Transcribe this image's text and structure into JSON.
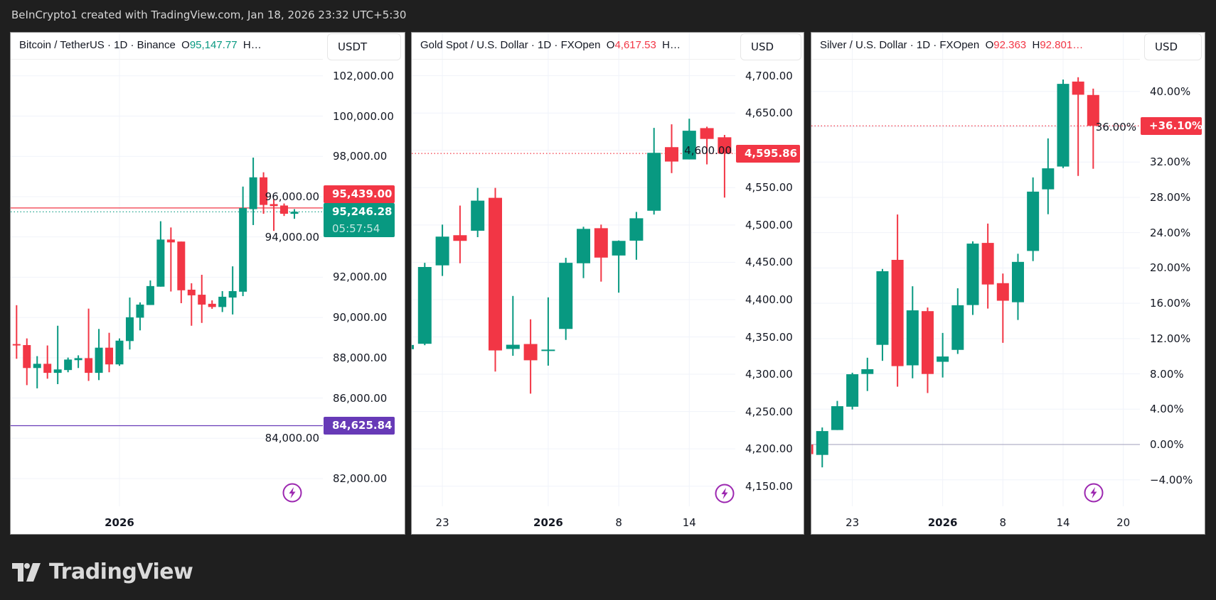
{
  "header": {
    "attribution": "BeInCrypto1 created with TradingView.com, Jan 18, 2026 23:32 UTC+5:30"
  },
  "footer": {
    "logo_text": "TradingView"
  },
  "colors": {
    "up": "#089981",
    "down": "#f23645",
    "alert_line": "#673ab7",
    "baseline": "#b2b0c8",
    "bolt_icon": "#9c27b0",
    "background": "#1f1f1f"
  },
  "chart_data": [
    {
      "type": "candlestick",
      "title": "Bitcoin / TetherUS · 1D · Binance",
      "legend": [
        {
          "text": "O",
          "color": null
        },
        {
          "text": "95,147.77",
          "color": "#089981"
        },
        {
          "text": "  H…",
          "color": null
        }
      ],
      "currency": "USDT",
      "scale": "price",
      "ylim": [
        80600,
        104100
      ],
      "grid": true,
      "y_ticks": [
        {
          "value": 102000,
          "label": "102,000.00"
        },
        {
          "value": 100000,
          "label": "100,000.00"
        },
        {
          "value": 98000,
          "label": "98,000.00"
        },
        {
          "value": 96000,
          "label": "96,000.00"
        },
        {
          "value": 94000,
          "label": "94,000.00"
        },
        {
          "value": 92000,
          "label": "92,000.00"
        },
        {
          "value": 90000,
          "label": "90,000.00"
        },
        {
          "value": 88000,
          "label": "88,000.00"
        },
        {
          "value": 86000,
          "label": "86,000.00"
        },
        {
          "value": 84000,
          "label": "84,000.00"
        },
        {
          "value": 82000,
          "label": "82,000.00"
        }
      ],
      "x_ticks": [
        {
          "date": "2026-01-01",
          "label": "2026",
          "year": true
        }
      ],
      "columns": [
        "date",
        "open",
        "high",
        "low",
        "close"
      ],
      "candles": [
        [
          "2025-12-22",
          88680,
          90610,
          87950,
          88620
        ],
        [
          "2025-12-23",
          88630,
          88960,
          86640,
          87490
        ],
        [
          "2025-12-24",
          87490,
          88080,
          86480,
          87700
        ],
        [
          "2025-12-25",
          87700,
          88610,
          86960,
          87250
        ],
        [
          "2025-12-26",
          87250,
          89590,
          86690,
          87420
        ],
        [
          "2025-12-27",
          87390,
          88010,
          87280,
          87910
        ],
        [
          "2025-12-28",
          87880,
          88120,
          87490,
          87980
        ],
        [
          "2025-12-29",
          87980,
          90440,
          86850,
          87250
        ],
        [
          "2025-12-30",
          87250,
          89430,
          86890,
          88500
        ],
        [
          "2025-12-31",
          88500,
          89240,
          87280,
          87670
        ],
        [
          "2026-01-01",
          87670,
          88960,
          87600,
          88850
        ],
        [
          "2026-01-02",
          88830,
          90990,
          88410,
          90010
        ],
        [
          "2026-01-03",
          89990,
          90750,
          89360,
          90640
        ],
        [
          "2026-01-04",
          90620,
          91840,
          90620,
          91560
        ],
        [
          "2026-01-05",
          91530,
          94780,
          91530,
          93870
        ],
        [
          "2026-01-06",
          93870,
          94470,
          91290,
          93730
        ],
        [
          "2026-01-07",
          93770,
          93770,
          90710,
          91350
        ],
        [
          "2026-01-08",
          91380,
          91700,
          89590,
          91100
        ],
        [
          "2026-01-09",
          91130,
          92120,
          89730,
          90640
        ],
        [
          "2026-01-10",
          90680,
          90850,
          90430,
          90520
        ],
        [
          "2026-01-11",
          90520,
          91310,
          90270,
          91030
        ],
        [
          "2026-01-12",
          90990,
          92540,
          90150,
          91310
        ],
        [
          "2026-01-13",
          91280,
          96500,
          91060,
          95430
        ],
        [
          "2026-01-14",
          95380,
          97940,
          94590,
          96960
        ],
        [
          "2026-01-15",
          96960,
          97210,
          95150,
          95590
        ],
        [
          "2026-01-16",
          95630,
          95870,
          94300,
          95530
        ],
        [
          "2026-01-17",
          95560,
          95660,
          95040,
          95150
        ],
        [
          "2026-01-18",
          95147.77,
          95380,
          94900,
          95246.28
        ]
      ],
      "price_lines": [
        {
          "value": 95246.28,
          "label": "95,246.28",
          "sublabel": "05:57:54",
          "color": "#089981",
          "style": "dotted"
        },
        {
          "value": 95439,
          "label": "95,439.00",
          "color": "#f23645",
          "style": "solid"
        },
        {
          "value": 84625.84,
          "label": "84,625.84",
          "color": "#673ab7",
          "style": "solid"
        }
      ]
    },
    {
      "type": "candlestick",
      "title": "Gold Spot / U.S. Dollar · 1D · FXOpen",
      "legend": [
        {
          "text": "O",
          "color": null
        },
        {
          "text": "4,617.53",
          "color": "#f23645"
        },
        {
          "text": "  H…",
          "color": null
        }
      ],
      "currency": "USD",
      "scale": "price",
      "ylim": [
        4123,
        4758
      ],
      "grid": true,
      "y_ticks": [
        {
          "value": 4700,
          "label": "4,700.00"
        },
        {
          "value": 4650,
          "label": "4,650.00"
        },
        {
          "value": 4600,
          "label": "4,600.00"
        },
        {
          "value": 4550,
          "label": "4,550.00"
        },
        {
          "value": 4500,
          "label": "4,500.00"
        },
        {
          "value": 4450,
          "label": "4,450.00"
        },
        {
          "value": 4400,
          "label": "4,400.00"
        },
        {
          "value": 4350,
          "label": "4,350.00"
        },
        {
          "value": 4300,
          "label": "4,300.00"
        },
        {
          "value": 4250,
          "label": "4,250.00"
        },
        {
          "value": 4200,
          "label": "4,200.00"
        },
        {
          "value": 4150,
          "label": "4,150.00"
        }
      ],
      "x_ticks": [
        {
          "date": "2025-12-23",
          "label": "23"
        },
        {
          "date": "2026-01-02",
          "label": "2026",
          "year": true
        },
        {
          "date": "2026-01-08",
          "label": "8"
        },
        {
          "date": "2026-01-14",
          "label": "14"
        }
      ],
      "columns": [
        "date",
        "open",
        "high",
        "low",
        "close"
      ],
      "candles": [
        [
          "2025-12-19",
          4333.6,
          4341.0,
          4332.0,
          4339.2
        ],
        [
          "2025-12-22",
          4340.8,
          4449.3,
          4338.9,
          4443.7
        ],
        [
          "2025-12-23",
          4445.9,
          4500.5,
          4431.7,
          4484.4
        ],
        [
          "2025-12-24",
          4486.3,
          4526.0,
          4448.7,
          4478.7
        ],
        [
          "2025-12-26",
          4492.3,
          4549.7,
          4483.7,
          4532.6
        ],
        [
          "2025-12-29",
          4536.4,
          4549.7,
          4303.6,
          4331.9
        ],
        [
          "2025-12-30",
          4333.9,
          4404.9,
          4324.7,
          4339.5
        ],
        [
          "2025-12-31",
          4340.5,
          4373.6,
          4274.0,
          4318.7
        ],
        [
          "2026-01-02",
          4332.0,
          4403.0,
          4311.5,
          4333.0
        ],
        [
          "2026-01-05",
          4360.7,
          4456.0,
          4346.0,
          4449.3
        ],
        [
          "2026-01-06",
          4448.7,
          4497.6,
          4428.8,
          4494.8
        ],
        [
          "2026-01-07",
          4495.7,
          4500.5,
          4424.1,
          4456.3
        ],
        [
          "2026-01-08",
          4459.1,
          4479.3,
          4409.3,
          4478.7
        ],
        [
          "2026-01-09",
          4479.0,
          4517.5,
          4453.4,
          4509.0
        ],
        [
          "2026-01-12",
          4519.1,
          4630.1,
          4514.0,
          4596.7
        ],
        [
          "2026-01-13",
          4604.3,
          4634.9,
          4569.5,
          4585.0
        ],
        [
          "2026-01-14",
          4587.8,
          4642.4,
          4587.8,
          4626.3
        ],
        [
          "2026-01-15",
          4629.8,
          4631.7,
          4581.2,
          4615.3
        ],
        [
          "2026-01-16",
          4617.53,
          4620.7,
          4536.7,
          4595.86
        ]
      ],
      "price_lines": [
        {
          "value": 4595.86,
          "label": "4,595.86",
          "color": "#f23645",
          "style": "dotted"
        }
      ]
    },
    {
      "type": "candlestick",
      "title": "Silver / U.S. Dollar · 1D · FXOpen",
      "legend": [
        {
          "text": "O",
          "color": null
        },
        {
          "text": "92.363",
          "color": "#f23645"
        },
        {
          "text": "  H",
          "color": null
        },
        {
          "text": "92.801…",
          "color": "#f23645"
        }
      ],
      "currency": "USD",
      "scale": "percent",
      "ylim": [
        -7.0,
        46.7
      ],
      "grid": true,
      "y_ticks": [
        {
          "value": 40,
          "label": "40.00%"
        },
        {
          "value": 36,
          "label": "36.00%"
        },
        {
          "value": 32,
          "label": "32.00%"
        },
        {
          "value": 28,
          "label": "28.00%"
        },
        {
          "value": 24,
          "label": "24.00%"
        },
        {
          "value": 20,
          "label": "20.00%"
        },
        {
          "value": 16,
          "label": "16.00%"
        },
        {
          "value": 12,
          "label": "12.00%"
        },
        {
          "value": 8,
          "label": "8.00%"
        },
        {
          "value": 4,
          "label": "4.00%"
        },
        {
          "value": 0,
          "label": "0.00%"
        },
        {
          "value": -4,
          "label": "−4.00%"
        }
      ],
      "x_ticks": [
        {
          "date": "2025-12-23",
          "label": "23"
        },
        {
          "date": "2026-01-02",
          "label": "2026",
          "year": true
        },
        {
          "date": "2026-01-08",
          "label": "8"
        },
        {
          "date": "2026-01-14",
          "label": "14"
        },
        {
          "date": "2026-01-20",
          "label": "20"
        }
      ],
      "axis_dates_after_last_bar": [
        "2026-01-19",
        "2026-01-20"
      ],
      "columns": [
        "date",
        "open",
        "high",
        "low",
        "close"
      ],
      "candles": [
        [
          "2025-12-18",
          0.0,
          0.0,
          -1.1,
          -1.09
        ],
        [
          "2025-12-19",
          -1.18,
          1.93,
          -2.59,
          1.52
        ],
        [
          "2025-12-22",
          1.64,
          4.94,
          1.64,
          4.34
        ],
        [
          "2025-12-23",
          4.28,
          8.13,
          3.97,
          7.96
        ],
        [
          "2025-12-24",
          7.99,
          9.83,
          6.06,
          8.53
        ],
        [
          "2025-12-26",
          11.29,
          19.89,
          9.48,
          19.63
        ],
        [
          "2025-12-29",
          20.92,
          26.06,
          6.55,
          8.88
        ],
        [
          "2025-12-30",
          8.97,
          17.93,
          7.5,
          15.2
        ],
        [
          "2025-12-31",
          15.11,
          15.52,
          5.83,
          7.99
        ],
        [
          "2026-01-02",
          9.37,
          12.64,
          7.59,
          9.97
        ],
        [
          "2026-01-05",
          10.72,
          17.7,
          10.26,
          15.78
        ],
        [
          "2026-01-06",
          15.8,
          23.02,
          14.68,
          22.76
        ],
        [
          "2026-01-07",
          22.84,
          25.03,
          15.4,
          18.13
        ],
        [
          "2026-01-08",
          18.28,
          19.37,
          11.52,
          16.29
        ],
        [
          "2026-01-09",
          16.12,
          21.61,
          14.11,
          20.69
        ],
        [
          "2026-01-12",
          21.93,
          30.26,
          20.78,
          28.65
        ],
        [
          "2026-01-13",
          28.91,
          34.68,
          26.09,
          31.29
        ],
        [
          "2026-01-14",
          31.49,
          41.35,
          31.32,
          40.86
        ],
        [
          "2026-01-15",
          41.12,
          41.61,
          30.43,
          39.63
        ],
        [
          "2026-01-16",
          39.6,
          40.32,
          31.24,
          36.1
        ]
      ],
      "baseline_value": 0,
      "price_lines": [
        {
          "value": 36.1,
          "label": "+36.10%",
          "color": "#f23645",
          "style": "dotted"
        }
      ]
    }
  ]
}
